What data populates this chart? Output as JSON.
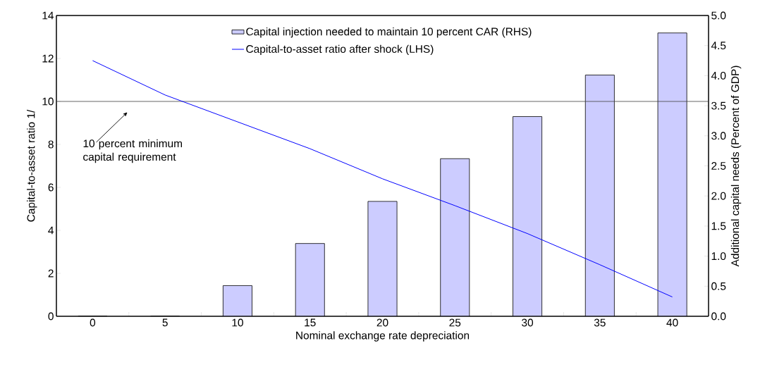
{
  "chart_data": {
    "type": "bar",
    "xlabel": "Nominal exchange rate depreciation",
    "ylabel": "Capital-to-asset ratio  1/",
    "y2label": "Additional capital needs (Percent of GDP)",
    "categories": [
      "0",
      "5",
      "10",
      "15",
      "20",
      "25",
      "30",
      "35",
      "40"
    ],
    "series": [
      {
        "axis": "y2",
        "name": "Capital injection needed to maintain 10 percent CAR (RHS)",
        "color": "#ccccff",
        "values": [
          0,
          0,
          0.51,
          1.21,
          1.91,
          2.62,
          3.32,
          4.01,
          4.71
        ]
      },
      {
        "type": "line",
        "name": "Capital-to-asset ratio after shock (LHS)",
        "color": "#0000ff",
        "values": [
          11.9,
          10.3,
          9.05,
          7.8,
          6.4,
          5.15,
          3.85,
          2.4,
          0.9
        ]
      }
    ],
    "ylim": [
      0,
      14
    ],
    "yticks": [
      0,
      2,
      4,
      6,
      8,
      10,
      12,
      14
    ],
    "y2lim": [
      0,
      5
    ],
    "y2ticks": [
      {
        "value": 0,
        "label": "0.0"
      },
      {
        "value": 0.5,
        "label": "0.5"
      },
      {
        "value": 1,
        "label": "1.0"
      },
      {
        "value": 1.5,
        "label": "1.5"
      },
      {
        "value": 2,
        "label": "2.0"
      },
      {
        "value": 2.5,
        "label": "2.5"
      },
      {
        "value": 3,
        "label": "3.0"
      },
      {
        "value": 3.5,
        "label": "3.5"
      },
      {
        "value": 4,
        "label": "4.0"
      },
      {
        "value": 4.5,
        "label": "4.5"
      },
      {
        "value": 5,
        "label": "5.0"
      }
    ],
    "ref_lines": [
      {
        "axis": "y",
        "value": 10,
        "color": "#404040"
      }
    ],
    "annotations": [
      "10 percent minimum capital requirement"
    ],
    "legend": "top",
    "marker": "none"
  }
}
